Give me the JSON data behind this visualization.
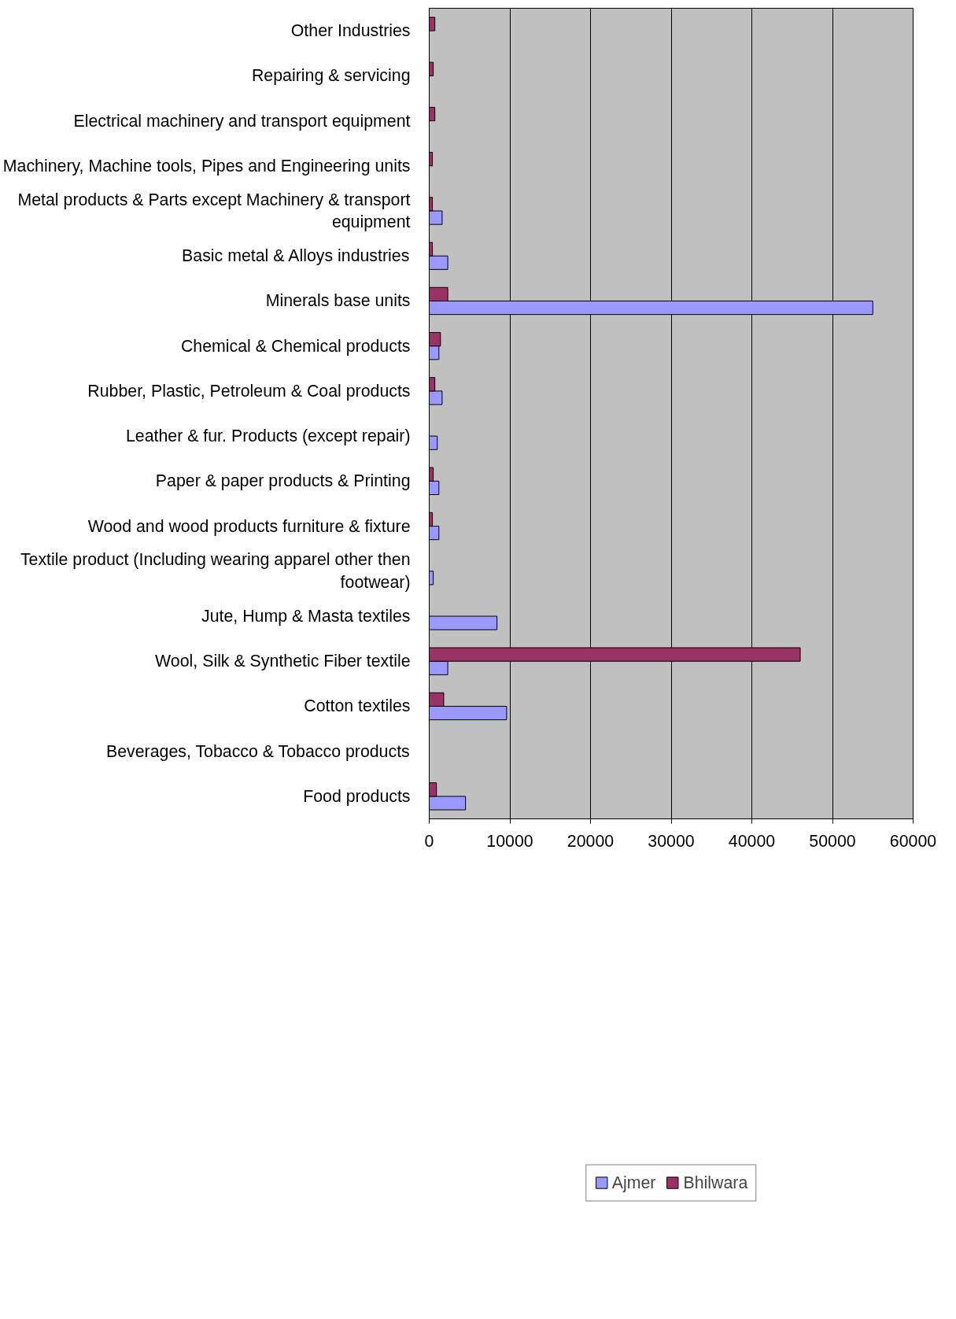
{
  "chart_data": {
    "type": "bar",
    "orientation": "horizontal",
    "categories": [
      "Other Industries",
      "Repairing & servicing",
      "Electrical machinery and transport equipment",
      "Machinery, Machine tools, Pipes and Engineering units",
      "Metal products & Parts except Machinery & transport equipment",
      "Basic metal & Alloys industries",
      "Minerals base units",
      "Chemical & Chemical products",
      "Rubber, Plastic, Petroleum & Coal products",
      "Leather & fur. Products (except repair)",
      "Paper & paper products & Printing",
      "Wood and wood products furniture & fixture",
      "Textile product (Including wearing apparel other then footwear)",
      "Jute, Hump & Masta textiles",
      "Wool, Silk & Synthetic Fiber textile",
      "Cotton textiles",
      "Beverages, Tobacco & Tobacco products",
      "Food products"
    ],
    "series": [
      {
        "name": "Ajmer",
        "color": "#9999ff",
        "values": [
          null,
          null,
          null,
          null,
          1600,
          2300,
          55000,
          1200,
          1600,
          1000,
          1200,
          1200,
          500,
          8400,
          2300,
          9600,
          null,
          4500
        ]
      },
      {
        "name": "Bhilwara",
        "color": "#993366",
        "values": [
          700,
          500,
          700,
          400,
          400,
          400,
          2300,
          1400,
          700,
          null,
          500,
          400,
          null,
          null,
          46000,
          1800,
          null,
          900
        ]
      }
    ],
    "xlim": [
      0,
      60000
    ],
    "xticks": [
      0,
      10000,
      20000,
      30000,
      40000,
      50000,
      60000
    ],
    "grid": "x",
    "legend": "bottom"
  }
}
